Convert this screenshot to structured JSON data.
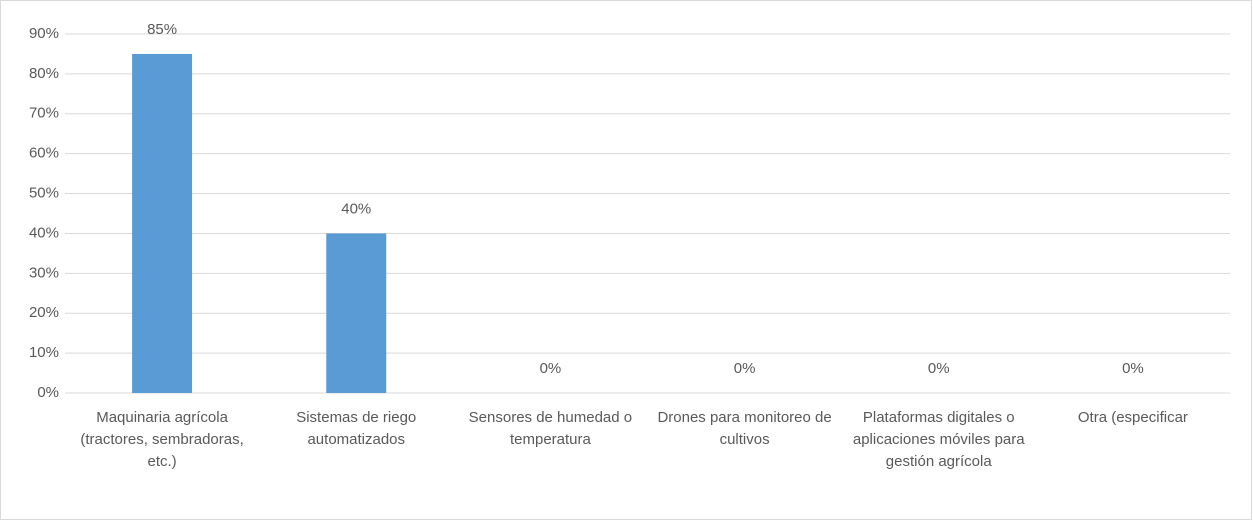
{
  "chart_data": {
    "type": "bar",
    "categories": [
      "Maquinaria agrícola (tractores, sembradoras, etc.)",
      "Sistemas de riego automatizados",
      "Sensores de humedad o temperatura",
      "Drones para monitoreo de cultivos",
      "Plataformas digitales o aplicaciones móviles para gestión agrícola",
      "Otra (especificar"
    ],
    "values": [
      85,
      40,
      0,
      0,
      0,
      0
    ],
    "value_labels": [
      "85%",
      "40%",
      "0%",
      "0%",
      "0%",
      "0%"
    ],
    "color": "#5b9bd5",
    "ylim": [
      0,
      90
    ],
    "yticks": [
      {
        "value": 0,
        "label": "0%"
      },
      {
        "value": 10,
        "label": "10%"
      },
      {
        "value": 20,
        "label": "20%"
      },
      {
        "value": 30,
        "label": "30%"
      },
      {
        "value": 40,
        "label": "40%"
      },
      {
        "value": 50,
        "label": "50%"
      },
      {
        "value": 60,
        "label": "60%"
      },
      {
        "value": 70,
        "label": "70%"
      },
      {
        "value": 80,
        "label": "80%"
      },
      {
        "value": 90,
        "label": "90%"
      }
    ],
    "grid": true
  }
}
